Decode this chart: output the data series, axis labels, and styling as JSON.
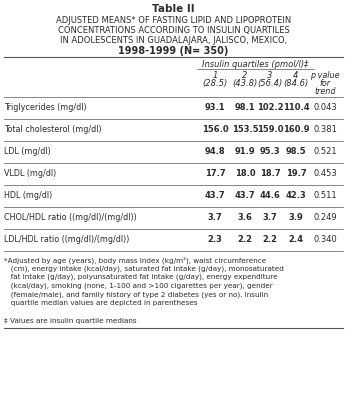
{
  "title_line1": "Table II",
  "title_line2_upper": "ADJUSTED MEANS* OF FASTING LIPID AND LIPOPROTEIN",
  "title_line2_first": "A",
  "title_line3_upper": "CONCENTRATIONS ACCORDING TO INSULIN QUARTILES",
  "title_line4_upper": "IN ADOLESCENTS IN GUADALAJARA, JALISCO, MEXICO,",
  "title_line4_bold_parts": [
    "GUADALAJARA",
    "JALISCO",
    "MEXICO"
  ],
  "title_line5": "1998-1999 (N= 350)",
  "col_header_main": "Insulin quartiles (pmol/l)‡",
  "col_sub_numbers": [
    "1",
    "2",
    "3",
    "4"
  ],
  "col_sub_vals": [
    "(28.5)",
    "(43.8)",
    "(56.4)",
    "(84.6)"
  ],
  "p_header": [
    "p value",
    "for",
    "trend"
  ],
  "row_labels": [
    "Triglycerides (mg/dl)",
    "Total cholesterol (mg/dl)",
    "LDL (mg/dl)",
    "VLDL (mg/dl)",
    "HDL (mg/dl)",
    "CHOL/HDL ratio ((mg/dl)/(mg/dl))",
    "LDL/HDL ratio ((mg/dl)/(mg/dl))"
  ],
  "data": [
    [
      "93.1",
      "98.1",
      "102.2",
      "110.4",
      "0.043"
    ],
    [
      "156.0",
      "153.5",
      "159.0",
      "160.9",
      "0.381"
    ],
    [
      "94.8",
      "91.9",
      "95.3",
      "98.5",
      "0.521"
    ],
    [
      "17.7",
      "18.0",
      "18.7",
      "19.7",
      "0.453"
    ],
    [
      "43.7",
      "43.7",
      "44.6",
      "42.3",
      "0.511"
    ],
    [
      "3.7",
      "3.6",
      "3.7",
      "3.9",
      "0.249"
    ],
    [
      "2.3",
      "2.2",
      "2.2",
      "2.4",
      "0.340"
    ]
  ],
  "footnote_star": "*Adjusted by age (years), body mass index (kg/m²), waist circumference\n   (cm), energy intake (kcal/day), saturated fat intake (g/day), monosaturated\n   fat intake (g/day), polyunsaturated fat intake (g/day), energy expenditure\n   (kcal/day), smoking (none, 1-100 and >100 cigarettes per year), gender\n   (female/male), and family history of type 2 diabetes (yes or no). Insulin\n   quartile median values are depicted in parentheses",
  "footnote_dagger": "‡ Values are insulin quartile medians",
  "bg_color": "#ffffff",
  "text_color": "#2b2b2b",
  "line_color": "#555555"
}
